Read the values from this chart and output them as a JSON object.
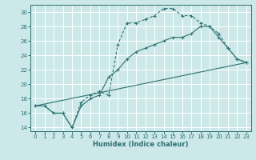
{
  "xlabel": "Humidex (Indice chaleur)",
  "bg_color": "#cce8e8",
  "line_color": "#2d7070",
  "grid_color": "#ffffff",
  "xlim": [
    -0.5,
    23.5
  ],
  "ylim": [
    13.5,
    31.0
  ],
  "xticks": [
    0,
    1,
    2,
    3,
    4,
    5,
    6,
    7,
    8,
    9,
    10,
    11,
    12,
    13,
    14,
    15,
    16,
    17,
    18,
    19,
    20,
    21,
    22,
    23
  ],
  "ytick_vals": [
    14,
    16,
    18,
    20,
    22,
    24,
    26,
    28,
    30
  ],
  "line1_x": [
    0,
    1,
    2,
    3,
    4,
    5,
    6,
    7,
    8,
    9,
    10,
    11,
    12,
    13,
    14,
    15,
    16,
    17,
    18,
    19,
    20,
    21,
    22,
    23
  ],
  "line1_y": [
    17,
    17,
    16,
    16,
    14,
    17.5,
    18.5,
    19,
    18.5,
    25.5,
    28.5,
    28.5,
    29,
    29.5,
    30.5,
    30.5,
    29.5,
    29.5,
    28.5,
    28,
    27,
    25,
    23.5,
    23
  ],
  "line2_x": [
    0,
    1,
    2,
    3,
    4,
    5,
    6,
    7,
    8,
    9,
    10,
    11,
    12,
    13,
    14,
    15,
    16,
    17,
    18,
    19,
    20,
    21,
    22,
    23
  ],
  "line2_y": [
    17,
    17,
    16,
    16,
    14,
    17,
    18,
    18.5,
    21,
    22,
    23.5,
    24.5,
    25,
    25.5,
    26,
    26.5,
    26.5,
    27,
    28,
    28,
    26.5,
    25,
    23.5,
    23
  ],
  "line3_x": [
    0,
    23
  ],
  "line3_y": [
    17,
    23
  ],
  "line4_x": [
    0,
    23
  ],
  "line4_y": [
    17,
    23
  ]
}
